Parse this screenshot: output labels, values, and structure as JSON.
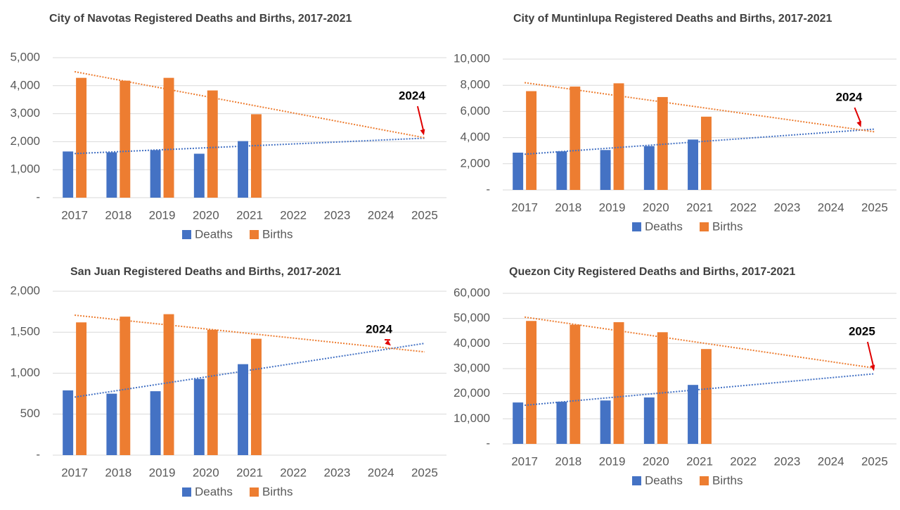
{
  "chart_data": [
    {
      "type": "bar",
      "title": "City of Navotas Registered Deaths and Births, 2017-2021",
      "categories": [
        "2017",
        "2018",
        "2019",
        "2020",
        "2021",
        "2022",
        "2023",
        "2024",
        "2025"
      ],
      "series": [
        {
          "name": "Deaths",
          "color": "#4472c4",
          "values": [
            1650,
            1620,
            1700,
            1570,
            2020,
            null,
            null,
            null,
            null
          ]
        },
        {
          "name": "Births",
          "color": "#ed7d31",
          "values": [
            4280,
            4180,
            4280,
            3830,
            2980,
            null,
            null,
            null,
            null
          ]
        }
      ],
      "ylim": [
        0,
        5000
      ],
      "yticks": [
        {
          "value": 0,
          "label": "-"
        },
        {
          "value": 1000,
          "label": "1,000"
        },
        {
          "value": 2000,
          "label": "2,000"
        },
        {
          "value": 3000,
          "label": "3,000"
        },
        {
          "value": 4000,
          "label": "4,000"
        },
        {
          "value": 5000,
          "label": "5,000"
        }
      ],
      "grid": true,
      "trendline": "linear",
      "legend": "bottom",
      "annotation": "2024"
    },
    {
      "type": "bar",
      "title": "City of Muntinlupa  Registered Deaths and Births, 2017-2021",
      "categories": [
        "2017",
        "2018",
        "2019",
        "2020",
        "2021",
        "2022",
        "2023",
        "2024",
        "2025"
      ],
      "series": [
        {
          "name": "Deaths",
          "color": "#4472c4",
          "values": [
            2850,
            2950,
            3050,
            3350,
            3850,
            null,
            null,
            null,
            null
          ]
        },
        {
          "name": "Births",
          "color": "#ed7d31",
          "values": [
            7550,
            7900,
            8150,
            7100,
            5600,
            null,
            null,
            null,
            null
          ]
        }
      ],
      "ylim": [
        0,
        10000
      ],
      "yticks": [
        {
          "value": 0,
          "label": "-"
        },
        {
          "value": 2000,
          "label": "2,000"
        },
        {
          "value": 4000,
          "label": "4,000"
        },
        {
          "value": 6000,
          "label": "6,000"
        },
        {
          "value": 8000,
          "label": "8,000"
        },
        {
          "value": 10000,
          "label": "10,000"
        }
      ],
      "grid": true,
      "trendline": "linear",
      "legend": "bottom",
      "annotation": "2024"
    },
    {
      "type": "bar",
      "title": "San Juan Registered Deaths and Births, 2017-2021",
      "categories": [
        "2017",
        "2018",
        "2019",
        "2020",
        "2021",
        "2022",
        "2023",
        "2024",
        "2025"
      ],
      "series": [
        {
          "name": "Deaths",
          "color": "#4472c4",
          "values": [
            790,
            750,
            780,
            930,
            1110,
            null,
            null,
            null,
            null
          ]
        },
        {
          "name": "Births",
          "color": "#ed7d31",
          "values": [
            1620,
            1690,
            1720,
            1530,
            1420,
            null,
            null,
            null,
            null
          ]
        }
      ],
      "ylim": [
        0,
        2000
      ],
      "yticks": [
        {
          "value": 0,
          "label": "-"
        },
        500,
        {
          "value": 1000,
          "label": "1,000"
        },
        {
          "value": 1500,
          "label": "1,500"
        },
        {
          "value": 2000,
          "label": "2,000"
        }
      ],
      "grid": true,
      "trendline": "linear",
      "legend": "bottom",
      "annotation": "2024"
    },
    {
      "type": "bar",
      "title": "Quezon City Registered Deaths and Births, 2017-2021",
      "categories": [
        "2017",
        "2018",
        "2019",
        "2020",
        "2021",
        "2022",
        "2023",
        "2024",
        "2025"
      ],
      "series": [
        {
          "name": "Deaths",
          "color": "#4472c4",
          "values": [
            16500,
            16800,
            17300,
            18500,
            23500,
            null,
            null,
            null,
            null
          ]
        },
        {
          "name": "Births",
          "color": "#ed7d31",
          "values": [
            49000,
            47500,
            48500,
            44500,
            37800,
            null,
            null,
            null,
            null
          ]
        }
      ],
      "ylim": [
        0,
        60000
      ],
      "yticks": [
        {
          "value": 0,
          "label": "-"
        },
        {
          "value": 10000,
          "label": "10,000"
        },
        {
          "value": 20000,
          "label": "20,000"
        },
        {
          "value": 30000,
          "label": "30,000"
        },
        {
          "value": 40000,
          "label": "40,000"
        },
        {
          "value": 50000,
          "label": "50,000"
        },
        {
          "value": 60000,
          "label": "60,000"
        }
      ],
      "grid": true,
      "trendline": "linear",
      "legend": "bottom",
      "annotation": "2025"
    }
  ]
}
